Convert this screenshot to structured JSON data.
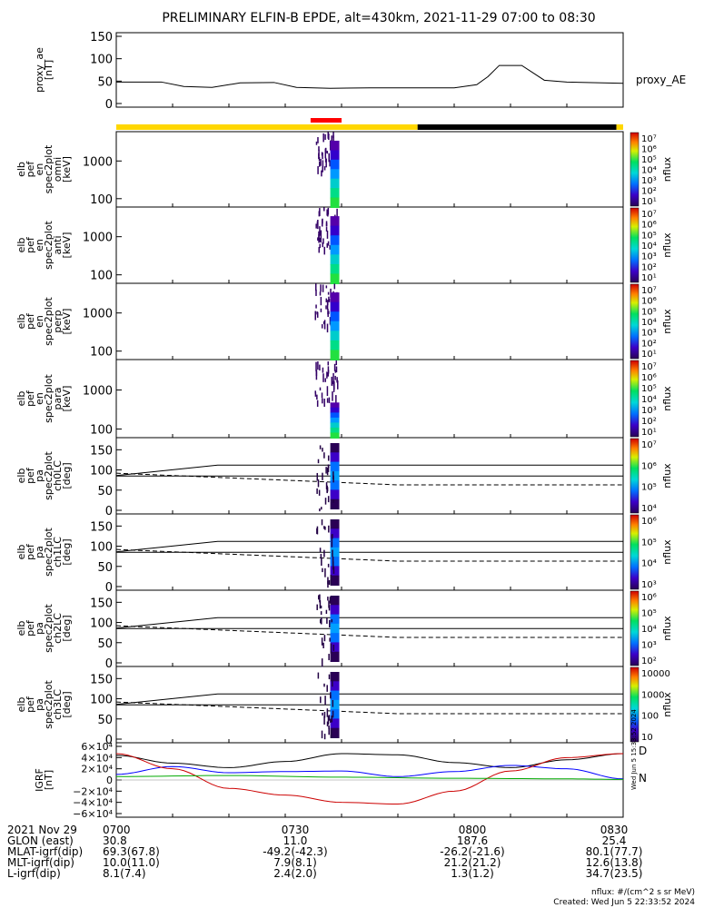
{
  "title": "PRELIMINARY ELFIN-B EPDE, alt=430km, 2021-11-29 07:00 to 08:30",
  "colors": {
    "sun_bar": "#ffd700",
    "eclipse_bar": "#000000",
    "science_bar": "#ff0000",
    "bx": "#000000",
    "by": "#0000ff",
    "bz": "#cc0000",
    "bt": "#00aa00"
  },
  "panels": [
    {
      "id": "ae",
      "ylabel": [
        "proxy_ae",
        "[nT]"
      ],
      "right_label": "proxy_AE",
      "yticks": [
        "150",
        "100",
        "50",
        "0"
      ]
    },
    {
      "id": "omni",
      "ylabel": [
        "elb",
        "pef",
        "en",
        "spec2plot",
        "omni",
        "[keV]"
      ],
      "yticks": [
        "1000",
        "100"
      ],
      "cb_ticks": [
        "10⁷",
        "10⁶",
        "10⁵",
        "10⁴",
        "10³",
        "10²",
        "10¹"
      ],
      "cb_label": "nflux"
    },
    {
      "id": "anti",
      "ylabel": [
        "elb",
        "pef",
        "en",
        "spec2plot",
        "anti",
        "[keV]"
      ],
      "yticks": [
        "1000",
        "100"
      ],
      "cb_ticks": [
        "10⁷",
        "10⁶",
        "10⁵",
        "10⁴",
        "10³",
        "10²",
        "10¹"
      ],
      "cb_label": "nflux"
    },
    {
      "id": "perp",
      "ylabel": [
        "elb",
        "pef",
        "en",
        "spec2plot",
        "perp",
        "[keV]"
      ],
      "yticks": [
        "1000",
        "100"
      ],
      "cb_ticks": [
        "10⁷",
        "10⁶",
        "10⁵",
        "10⁴",
        "10³",
        "10²",
        "10¹"
      ],
      "cb_label": "nflux"
    },
    {
      "id": "para",
      "ylabel": [
        "elb",
        "pef",
        "en",
        "spec2plot",
        "para",
        "[keV]"
      ],
      "yticks": [
        "1000",
        "100"
      ],
      "cb_ticks": [
        "10⁷",
        "10⁶",
        "10⁵",
        "10⁴",
        "10³",
        "10²",
        "10¹"
      ],
      "cb_label": "nflux"
    },
    {
      "id": "ch0",
      "ylabel": [
        "elb",
        "pef",
        "pa",
        "spec2plot",
        "ch0LC",
        "[deg]"
      ],
      "yticks": [
        "150",
        "100",
        "50",
        "0"
      ],
      "cb_ticks": [
        "10⁷",
        "10⁶",
        "10⁵",
        "10⁴"
      ],
      "cb_label": "nflux"
    },
    {
      "id": "ch1",
      "ylabel": [
        "elb",
        "pef",
        "pa",
        "spec2plot",
        "ch1LC",
        "[deg]"
      ],
      "yticks": [
        "150",
        "100",
        "50",
        "0"
      ],
      "cb_ticks": [
        "10⁶",
        "10⁵",
        "10⁴",
        "10³"
      ],
      "cb_label": "nflux"
    },
    {
      "id": "ch2",
      "ylabel": [
        "elb",
        "pef",
        "pa",
        "spec2plot",
        "ch2LC",
        "[deg]"
      ],
      "yticks": [
        "150",
        "100",
        "50",
        "0"
      ],
      "cb_ticks": [
        "10⁶",
        "10⁵",
        "10⁴",
        "10³",
        "10²"
      ],
      "cb_label": "nflux"
    },
    {
      "id": "ch3",
      "ylabel": [
        "elb",
        "pef",
        "pa",
        "spec2plot",
        "ch3LC",
        "[deg]"
      ],
      "yticks": [
        "150",
        "100",
        "50",
        "0"
      ],
      "cb_ticks": [
        "10000",
        "1000",
        "100",
        "10"
      ],
      "cb_label": "nflux"
    },
    {
      "id": "igrf",
      "ylabel": [
        "IGRF",
        "[nT]"
      ],
      "yticks": [
        "6×10⁴",
        "4×10⁴",
        "2×10⁴",
        "0",
        "−2×10⁴",
        "−4×10⁴",
        "−6×10⁴"
      ],
      "legend": [
        "D",
        "N"
      ]
    }
  ],
  "chart_data": {
    "type": "line",
    "x_ticks": [
      "0700",
      "0730",
      "0800",
      "0830"
    ],
    "xlim_minutes": [
      0,
      90
    ],
    "proxy_ae": {
      "x": [
        0,
        2,
        8,
        12,
        17,
        22,
        28,
        32,
        38,
        45,
        55,
        60,
        64,
        66,
        68,
        72,
        76,
        80,
        90
      ],
      "y": [
        48,
        48,
        48,
        38,
        36,
        46,
        47,
        36,
        34,
        35,
        35,
        35,
        42,
        60,
        85,
        85,
        52,
        48,
        45
      ],
      "ylim": [
        0,
        150
      ]
    },
    "spectrogram_energy_range_keV": [
      60,
      6000
    ],
    "burst_window_minutes": [
      36,
      40
    ],
    "pa_lines": {
      "solid_upper": [
        [
          0,
          86
        ],
        [
          18,
          112
        ],
        [
          90,
          112
        ]
      ],
      "solid_lower": [
        [
          0,
          85
        ],
        [
          90,
          85
        ]
      ],
      "dashed": [
        [
          0,
          92
        ],
        [
          50,
          63
        ],
        [
          90,
          63
        ]
      ],
      "ylim": [
        0,
        180
      ]
    },
    "igrf": {
      "ylim": [
        -60000,
        60000
      ],
      "x_black": [
        0,
        10,
        20,
        30,
        40,
        50,
        60,
        70,
        80,
        90
      ],
      "black": [
        44000,
        30000,
        22000,
        33000,
        47000,
        45000,
        31000,
        22000,
        36000,
        47000
      ],
      "x_blue": [
        0,
        10,
        20,
        30,
        40,
        50,
        60,
        70,
        80,
        90
      ],
      "blue": [
        10000,
        24000,
        13000,
        15000,
        16000,
        6000,
        15000,
        26000,
        20000,
        2000
      ],
      "x_red": [
        0,
        10,
        20,
        30,
        40,
        50,
        60,
        70,
        80,
        90
      ],
      "red": [
        47000,
        20000,
        -15000,
        -27000,
        -40000,
        -43000,
        -20000,
        16000,
        40000,
        47000
      ],
      "x_green": [
        0,
        20,
        40,
        60,
        80,
        90
      ],
      "green": [
        6000,
        8000,
        5000,
        3000,
        2000,
        1000
      ]
    }
  },
  "ephemeris": {
    "rows": [
      {
        "label": "2021 Nov 29",
        "values": [
          "0700",
          "0730",
          "0800",
          "0830"
        ]
      },
      {
        "label": "GLON (east)",
        "values": [
          "30.8",
          "11.0",
          "187.6",
          "25.4"
        ]
      },
      {
        "label": "MLAT-igrf(dip)",
        "values": [
          "69.3(67.8)",
          "-49.2(-42.3)",
          "-26.2(-21.6)",
          "80.1(77.7)"
        ]
      },
      {
        "label": "MLT-igrf(dip)",
        "values": [
          "10.0(11.0)",
          "7.9(8.1)",
          "21.2(21.2)",
          "12.6(13.8)"
        ]
      },
      {
        "label": "L-igrf(dip)",
        "values": [
          "8.1(7.4)",
          "2.4(2.0)",
          "1.3(1.2)",
          "34.7(23.5)"
        ]
      }
    ]
  },
  "footer": {
    "units": "nflux: #/(cm^2 s sr MeV)",
    "created": "Created: Wed Jun  5 22:33:52 2024",
    "side_stamp": "Wed Jun  5 15:33:52 2024"
  }
}
